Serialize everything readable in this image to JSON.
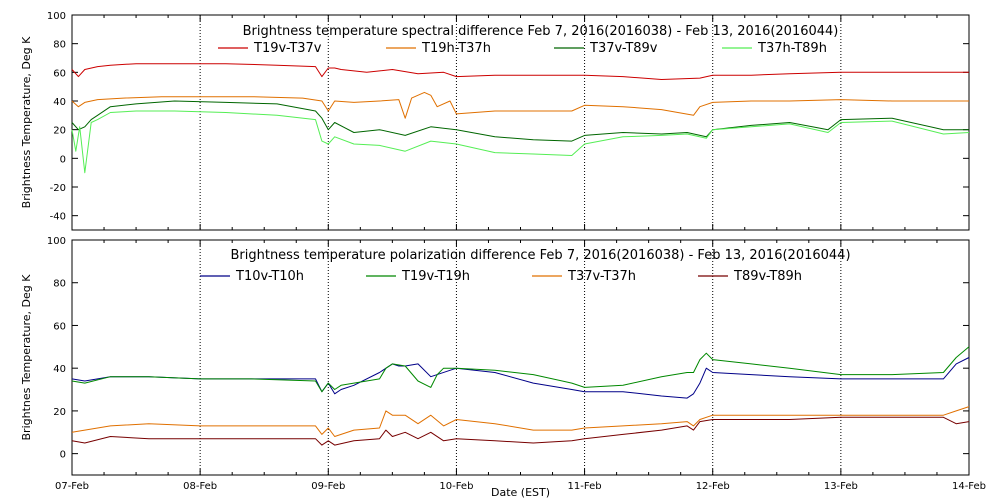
{
  "chart_data": [
    {
      "type": "line",
      "title": "Brightness temperature spectral difference     Feb  7, 2016(2016038) - Feb 13, 2016(2016044)",
      "xlabel": "",
      "ylabel": "Brightness Temperature, Deg K",
      "ylim": [
        -50,
        100
      ],
      "yticks": [
        -40,
        -20,
        0,
        20,
        40,
        60,
        80,
        100
      ],
      "xlim": [
        "2016-02-07",
        "2016-02-14"
      ],
      "grid": "vertical dotted at each day",
      "legend_position": "top",
      "series": [
        {
          "name": "T19v-T37v",
          "color": "#cc0000",
          "x": [
            7.0,
            7.05,
            7.1,
            7.2,
            7.3,
            7.5,
            7.8,
            8.2,
            8.6,
            8.9,
            8.95,
            9.0,
            9.05,
            9.1,
            9.3,
            9.5,
            9.7,
            9.9,
            10.0,
            10.3,
            10.6,
            10.9,
            11.0,
            11.3,
            11.6,
            11.9,
            12.0,
            12.3,
            12.6,
            13.0,
            13.3,
            13.6,
            14.0
          ],
          "y": [
            62,
            57,
            62,
            64,
            65,
            66,
            66,
            66,
            65,
            64,
            57,
            63,
            63,
            62,
            60,
            62,
            59,
            60,
            57,
            58,
            58,
            58,
            58,
            57,
            55,
            56,
            58,
            58,
            59,
            60,
            60,
            60,
            60
          ]
        },
        {
          "name": "T19h-T37h",
          "color": "#e07000",
          "x": [
            7.0,
            7.05,
            7.1,
            7.2,
            7.4,
            7.7,
            8.0,
            8.4,
            8.8,
            8.95,
            9.0,
            9.05,
            9.2,
            9.4,
            9.55,
            9.6,
            9.65,
            9.75,
            9.8,
            9.85,
            9.95,
            10.0,
            10.3,
            10.6,
            10.9,
            11.0,
            11.3,
            11.6,
            11.85,
            11.9,
            12.0,
            12.3,
            12.6,
            13.0,
            13.4,
            13.8,
            14.0
          ],
          "y": [
            40,
            36,
            39,
            41,
            42,
            43,
            43,
            43,
            42,
            40,
            33,
            40,
            39,
            40,
            41,
            28,
            42,
            46,
            44,
            36,
            40,
            31,
            33,
            33,
            33,
            37,
            36,
            34,
            30,
            36,
            39,
            40,
            40,
            41,
            40,
            40,
            40
          ]
        },
        {
          "name": "T37v-T89v",
          "color": "#006600",
          "x": [
            7.0,
            7.05,
            7.1,
            7.15,
            7.2,
            7.3,
            7.5,
            7.8,
            8.2,
            8.6,
            8.9,
            8.95,
            9.0,
            9.05,
            9.2,
            9.4,
            9.6,
            9.8,
            10.0,
            10.3,
            10.6,
            10.9,
            11.0,
            11.3,
            11.6,
            11.8,
            11.95,
            12.0,
            12.3,
            12.6,
            12.9,
            13.0,
            13.4,
            13.8,
            14.0
          ],
          "y": [
            25,
            20,
            22,
            27,
            30,
            36,
            38,
            40,
            39,
            38,
            33,
            28,
            20,
            25,
            18,
            20,
            16,
            22,
            20,
            15,
            13,
            12,
            16,
            18,
            17,
            18,
            15,
            20,
            23,
            25,
            20,
            27,
            28,
            20,
            20
          ]
        },
        {
          "name": "T37h-T89h",
          "color": "#55ee55",
          "x": [
            7.0,
            7.03,
            7.06,
            7.1,
            7.15,
            7.2,
            7.3,
            7.5,
            7.8,
            8.2,
            8.6,
            8.9,
            8.95,
            9.0,
            9.05,
            9.2,
            9.4,
            9.6,
            9.8,
            10.0,
            10.3,
            10.6,
            10.9,
            11.0,
            11.3,
            11.6,
            11.8,
            11.95,
            12.0,
            12.3,
            12.6,
            12.9,
            13.0,
            13.4,
            13.8,
            14.0
          ],
          "y": [
            20,
            5,
            22,
            -10,
            25,
            27,
            32,
            33,
            33,
            32,
            30,
            27,
            12,
            10,
            15,
            10,
            9,
            5,
            12,
            10,
            4,
            3,
            2,
            10,
            15,
            16,
            17,
            14,
            20,
            22,
            24,
            18,
            25,
            26,
            17,
            18
          ]
        }
      ]
    },
    {
      "type": "line",
      "title": "Brightness temperature polarization difference     Feb  7, 2016(2016038) - Feb 13, 2016(2016044)",
      "xlabel": "Date (EST)",
      "ylabel": "Brightnes Temperature, Deg K",
      "ylim": [
        -10,
        100
      ],
      "yticks": [
        0,
        20,
        40,
        60,
        80,
        100
      ],
      "xlim": [
        "2016-02-07",
        "2016-02-14"
      ],
      "xtick_labels": [
        "07-Feb",
        "08-Feb",
        "09-Feb",
        "10-Feb",
        "11-Feb",
        "12-Feb",
        "13-Feb",
        "14-Feb"
      ],
      "grid": "vertical dotted at each day",
      "legend_position": "top",
      "series": [
        {
          "name": "T10v-T10h",
          "color": "#000088",
          "x": [
            7.0,
            7.1,
            7.3,
            7.6,
            8.0,
            8.4,
            8.9,
            8.95,
            9.0,
            9.05,
            9.1,
            9.2,
            9.4,
            9.5,
            9.55,
            9.6,
            9.7,
            9.8,
            10.0,
            10.3,
            10.6,
            10.9,
            11.0,
            11.3,
            11.6,
            11.8,
            11.85,
            11.9,
            11.95,
            12.0,
            12.3,
            12.6,
            13.0,
            13.4,
            13.8,
            13.9,
            14.0
          ],
          "y": [
            35,
            34,
            36,
            36,
            35,
            35,
            35,
            29,
            33,
            28,
            30,
            32,
            38,
            42,
            41,
            41,
            42,
            36,
            40,
            38,
            33,
            30,
            29,
            29,
            27,
            26,
            28,
            33,
            40,
            38,
            37,
            36,
            35,
            35,
            35,
            42,
            45
          ]
        },
        {
          "name": "T19v-T19h",
          "color": "#008800",
          "x": [
            7.0,
            7.1,
            7.3,
            7.6,
            8.0,
            8.4,
            8.9,
            8.95,
            9.0,
            9.05,
            9.1,
            9.2,
            9.4,
            9.45,
            9.5,
            9.6,
            9.7,
            9.8,
            9.85,
            9.9,
            10.0,
            10.3,
            10.6,
            10.9,
            11.0,
            11.3,
            11.6,
            11.8,
            11.85,
            11.9,
            11.95,
            12.0,
            12.3,
            12.6,
            13.0,
            13.4,
            13.8,
            13.9,
            14.0
          ],
          "y": [
            34,
            33,
            36,
            36,
            35,
            35,
            34,
            29,
            33,
            30,
            32,
            33,
            35,
            40,
            42,
            41,
            34,
            31,
            37,
            40,
            40,
            39,
            37,
            33,
            31,
            32,
            36,
            38,
            38,
            44,
            47,
            44,
            42,
            40,
            37,
            37,
            38,
            45,
            50
          ]
        },
        {
          "name": "T37v-T37h",
          "color": "#e07000",
          "x": [
            7.0,
            7.1,
            7.3,
            7.6,
            8.0,
            8.4,
            8.9,
            8.95,
            9.0,
            9.05,
            9.2,
            9.4,
            9.45,
            9.5,
            9.6,
            9.7,
            9.8,
            9.9,
            10.0,
            10.3,
            10.6,
            10.9,
            11.0,
            11.3,
            11.6,
            11.8,
            11.85,
            11.9,
            12.0,
            12.3,
            12.6,
            13.0,
            13.4,
            13.8,
            13.9,
            14.0
          ],
          "y": [
            10,
            11,
            13,
            14,
            13,
            13,
            13,
            9,
            12,
            8,
            11,
            12,
            20,
            18,
            18,
            14,
            18,
            13,
            16,
            14,
            11,
            11,
            12,
            13,
            14,
            15,
            13,
            16,
            18,
            18,
            18,
            18,
            18,
            18,
            20,
            22
          ]
        },
        {
          "name": "T89v-T89h",
          "color": "#770000",
          "x": [
            7.0,
            7.1,
            7.3,
            7.6,
            8.0,
            8.4,
            8.9,
            8.95,
            9.0,
            9.05,
            9.2,
            9.4,
            9.45,
            9.5,
            9.6,
            9.7,
            9.8,
            9.9,
            10.0,
            10.3,
            10.6,
            10.9,
            11.0,
            11.3,
            11.6,
            11.8,
            11.85,
            11.9,
            12.0,
            12.3,
            12.6,
            13.0,
            13.4,
            13.8,
            13.9,
            14.0
          ],
          "y": [
            6,
            5,
            8,
            7,
            7,
            7,
            7,
            4,
            6,
            4,
            6,
            7,
            11,
            8,
            10,
            7,
            10,
            6,
            7,
            6,
            5,
            6,
            7,
            9,
            11,
            13,
            11,
            15,
            16,
            16,
            16,
            17,
            17,
            17,
            14,
            15
          ]
        }
      ]
    }
  ]
}
